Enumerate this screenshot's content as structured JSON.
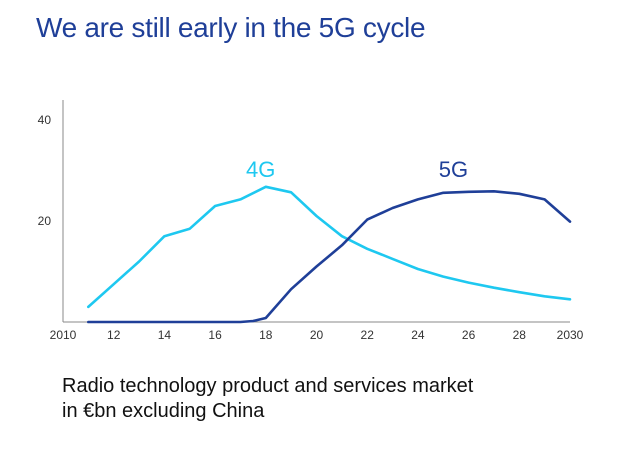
{
  "title": "We are still early in the 5G cycle",
  "caption": {
    "line1": "Radio technology product and services market",
    "line2": "in €bn excluding China"
  },
  "chart_data": {
    "type": "line",
    "title": "We are still early in the 5G cycle",
    "xlabel": "",
    "ylabel": "",
    "xlim": [
      2010,
      2030
    ],
    "ylim": [
      0,
      44
    ],
    "x_ticks": [
      {
        "value": 2010,
        "label": "2010"
      },
      {
        "value": 2012,
        "label": "12"
      },
      {
        "value": 2014,
        "label": "14"
      },
      {
        "value": 2016,
        "label": "16"
      },
      {
        "value": 2018,
        "label": "18"
      },
      {
        "value": 2020,
        "label": "20"
      },
      {
        "value": 2022,
        "label": "22"
      },
      {
        "value": 2024,
        "label": "24"
      },
      {
        "value": 2026,
        "label": "26"
      },
      {
        "value": 2028,
        "label": "28"
      },
      {
        "value": 2030,
        "label": "2030"
      }
    ],
    "y_ticks": [
      {
        "value": 20,
        "label": "20"
      },
      {
        "value": 40,
        "label": "40"
      }
    ],
    "grid": false,
    "series": [
      {
        "name": "4G",
        "color": "#1ec8f0",
        "x": [
          2011,
          2012,
          2013,
          2014,
          2015,
          2016,
          2017,
          2018,
          2019,
          2020,
          2021,
          2022,
          2023,
          2024,
          2025,
          2026,
          2027,
          2028,
          2029,
          2030
        ],
        "values": [
          3,
          7.5,
          12,
          17,
          18.5,
          23,
          24.3,
          26.8,
          25.7,
          21,
          17,
          14.5,
          12.5,
          10.5,
          9,
          7.8,
          6.8,
          5.9,
          5.1,
          4.5
        ]
      },
      {
        "name": "5G",
        "color": "#1f3f98",
        "x": [
          2011,
          2012,
          2013,
          2014,
          2015,
          2016,
          2017,
          2017.5,
          2018,
          2019,
          2020,
          2021,
          2022,
          2023,
          2024,
          2025,
          2026,
          2027,
          2028,
          2029,
          2030
        ],
        "values": [
          0,
          0,
          0,
          0,
          0,
          0,
          0,
          0.2,
          0.8,
          6.5,
          11,
          15.2,
          20.3,
          22.6,
          24.3,
          25.6,
          25.8,
          25.9,
          25.4,
          24.3,
          19.9
        ]
      }
    ],
    "series_labels": [
      {
        "series": "4G",
        "text": "4G",
        "x": 2017.8,
        "y": 28.7,
        "color": "#1ec8f0"
      },
      {
        "series": "5G",
        "text": "5G",
        "x": 2025.4,
        "y": 28.7,
        "color": "#1f3f98"
      }
    ]
  }
}
